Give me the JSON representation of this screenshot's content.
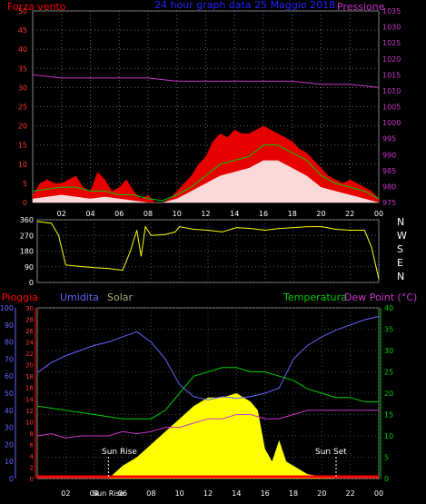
{
  "chart_data": [
    {
      "type": "line",
      "title": "24 hour graph data  25 Maggio 2018",
      "y_left_label": "Forza vento",
      "y_right_label": "Pressione",
      "x_ticks": [
        "02",
        "04",
        "06",
        "08",
        "10",
        "12",
        "14",
        "16",
        "18",
        "20",
        "22",
        "00"
      ],
      "y_left_ticks": [
        0,
        5,
        10,
        15,
        20,
        25,
        30,
        35,
        40,
        45,
        50
      ],
      "y_right_ticks": [
        975,
        980,
        985,
        990,
        995,
        1000,
        1005,
        1010,
        1015,
        1020,
        1025,
        1030,
        1035
      ],
      "ylim_left": [
        0,
        50
      ],
      "ylim_right": [
        975,
        1035
      ],
      "grid": true,
      "colors": {
        "gust": "#ff0000",
        "avg": "#00cc00",
        "wind": "#ffffff",
        "pressure": "#cc33cc",
        "ylabel_left": "#ff0000",
        "ylabel_right": "#cc33cc",
        "title": "#2222ff"
      },
      "series": [
        {
          "key": "gust",
          "hours": [
            0,
            0.5,
            1,
            1.5,
            2,
            2.5,
            3,
            3.5,
            4,
            4.5,
            5,
            5.5,
            6,
            6.5,
            7,
            7.5,
            8,
            8.5,
            9,
            9.5,
            10,
            10.5,
            11,
            11.5,
            12,
            12.5,
            13,
            13.5,
            14,
            14.5,
            15,
            15.5,
            16,
            16.5,
            17,
            17.5,
            18,
            18.5,
            19,
            19.5,
            20,
            20.5,
            21,
            21.5,
            22,
            22.5,
            23,
            23.5,
            24
          ],
          "values": [
            2,
            5,
            6,
            5,
            5,
            6,
            7,
            4,
            3,
            8,
            6,
            3,
            4,
            6,
            3,
            1,
            2,
            0,
            0,
            1,
            3,
            5,
            7,
            10,
            12,
            16,
            18,
            17,
            19,
            18,
            18,
            19,
            20,
            19,
            18,
            17,
            16,
            14,
            13,
            11,
            9,
            7,
            6,
            5,
            6,
            5,
            4,
            3,
            1
          ]
        },
        {
          "key": "avg",
          "hours": [
            0,
            1,
            2,
            3,
            4,
            5,
            6,
            7,
            8,
            9,
            10,
            11,
            12,
            13,
            14,
            15,
            16,
            17,
            18,
            19,
            20,
            21,
            22,
            23,
            24
          ],
          "values": [
            3,
            3.5,
            4,
            4,
            3,
            3,
            2,
            2,
            1,
            0.5,
            2,
            4,
            7,
            10,
            11,
            12,
            15,
            15,
            13,
            11,
            7,
            5,
            4,
            3,
            1
          ]
        },
        {
          "key": "wind",
          "hours": [
            0,
            1,
            2,
            3,
            4,
            5,
            6,
            7,
            8,
            9,
            10,
            11,
            12,
            13,
            14,
            15,
            16,
            17,
            18,
            19,
            20,
            21,
            22,
            23,
            24
          ],
          "values": [
            1,
            1.5,
            2,
            1.5,
            1,
            1.5,
            1,
            0.5,
            0,
            0,
            1,
            3,
            5,
            7,
            8,
            9,
            11,
            11,
            9,
            7,
            4,
            3,
            2,
            1,
            0
          ]
        },
        {
          "key": "pressure",
          "hours": [
            0,
            2,
            4,
            6,
            8,
            10,
            12,
            14,
            16,
            18,
            20,
            22,
            24
          ],
          "values": [
            1015,
            1014,
            1014,
            1014,
            1014,
            1013,
            1013,
            1013,
            1013,
            1013,
            1012,
            1012,
            1011
          ]
        }
      ]
    },
    {
      "type": "line",
      "y_ticks": [
        "360",
        "270",
        "180",
        "90",
        "0"
      ],
      "ylim": [
        0,
        360
      ],
      "compass_labels": [
        "N",
        "W",
        "S",
        "E",
        "N"
      ],
      "x_ticks": [
        "02",
        "04",
        "06",
        "08",
        "10",
        "12",
        "14",
        "16",
        "18",
        "20",
        "22",
        "00"
      ],
      "colors": {
        "direction": "#ffff00",
        "grid": "#555555"
      },
      "series": [
        {
          "key": "direction",
          "hours": [
            0,
            1,
            1.5,
            2,
            3,
            4,
            5,
            6,
            6.5,
            7,
            7.3,
            7.6,
            8,
            9,
            9.7,
            10,
            11,
            12,
            13,
            14,
            15,
            16,
            17,
            18,
            19,
            20,
            21,
            22,
            23,
            23.5,
            24
          ],
          "values": [
            350,
            340,
            270,
            100,
            92,
            85,
            80,
            70,
            170,
            300,
            150,
            320,
            270,
            275,
            290,
            320,
            305,
            300,
            290,
            315,
            310,
            300,
            310,
            315,
            320,
            320,
            305,
            300,
            300,
            200,
            20
          ]
        }
      ]
    },
    {
      "type": "line",
      "labels": {
        "pioggia": "Pioggia",
        "umidita": "Umidita",
        "solar": "Solar",
        "temperatura": "Temperatura",
        "dew": "Dew Point (°C)",
        "sunrise": "Sun Rise",
        "sunset": "Sun Set"
      },
      "x_ticks": [
        "02",
        "04",
        "Sun Rise",
        "06",
        "08",
        "10",
        "12",
        "14",
        "16",
        "18",
        "20",
        "22",
        "00"
      ],
      "y_umidita_ticks": [
        0,
        10,
        20,
        30,
        40,
        50,
        60,
        70,
        80,
        90,
        100
      ],
      "y_pioggia_ticks": [
        0,
        2,
        4,
        6,
        8,
        10,
        12,
        14,
        16,
        18,
        20,
        22,
        24,
        26,
        28,
        30
      ],
      "y_temp_ticks": [
        0,
        5,
        10,
        15,
        20,
        25,
        30,
        35,
        40
      ],
      "ylim_umidita": [
        0,
        100
      ],
      "ylim_temp": [
        0,
        40
      ],
      "sun_rise_hour": 5.0,
      "sun_set_hour": 21.0,
      "colors": {
        "pioggia": "#ff0000",
        "umidita": "#6666ff",
        "solar": "#ffff00",
        "temperatura": "#00cc00",
        "dew": "#cc33cc",
        "solar_label": "#aaaa77",
        "grid": "#444444"
      },
      "series": [
        {
          "key": "umidita",
          "hours": [
            0,
            1,
            2,
            3,
            4,
            5,
            6,
            7,
            8,
            9,
            10,
            11,
            12,
            13,
            14,
            15,
            16,
            17,
            18,
            19,
            20,
            21,
            22,
            23,
            24
          ],
          "values": [
            62,
            68,
            72,
            75,
            78,
            80,
            83,
            86,
            80,
            70,
            55,
            48,
            46,
            48,
            47,
            48,
            50,
            53,
            70,
            78,
            83,
            87,
            90,
            93,
            95
          ]
        },
        {
          "key": "temperatura",
          "hours": [
            0,
            1,
            2,
            3,
            4,
            5,
            6,
            7,
            8,
            9,
            10,
            11,
            12,
            13,
            14,
            15,
            16,
            17,
            18,
            19,
            20,
            21,
            22,
            23,
            24
          ],
          "values": [
            17,
            16.5,
            16,
            15.5,
            15,
            14.5,
            14,
            14,
            14,
            16,
            20,
            24,
            25,
            26,
            26,
            25,
            25,
            24,
            23,
            21,
            20,
            19,
            19,
            18,
            18
          ]
        },
        {
          "key": "dew",
          "hours": [
            0,
            1,
            2,
            3,
            4,
            5,
            6,
            7,
            8,
            9,
            10,
            11,
            12,
            13,
            14,
            15,
            16,
            17,
            18,
            19,
            20,
            21,
            22,
            23,
            24
          ],
          "values": [
            10,
            10.5,
            9.5,
            10,
            10,
            10,
            11,
            10.5,
            11,
            12,
            12,
            13,
            14,
            14,
            15,
            15,
            14,
            14,
            15,
            16,
            16,
            16,
            16,
            16,
            16
          ]
        },
        {
          "key": "solar",
          "hours": [
            5,
            6,
            7,
            8,
            9,
            10,
            11,
            12,
            13,
            14,
            15,
            15.5,
            16,
            16.5,
            17,
            17.5,
            18,
            19,
            20,
            21
          ],
          "values": [
            0,
            3,
            5,
            8,
            11,
            14,
            17,
            19,
            19,
            20,
            18,
            16,
            7,
            4,
            9,
            4,
            3,
            1,
            0.5,
            0
          ]
        }
      ]
    }
  ]
}
